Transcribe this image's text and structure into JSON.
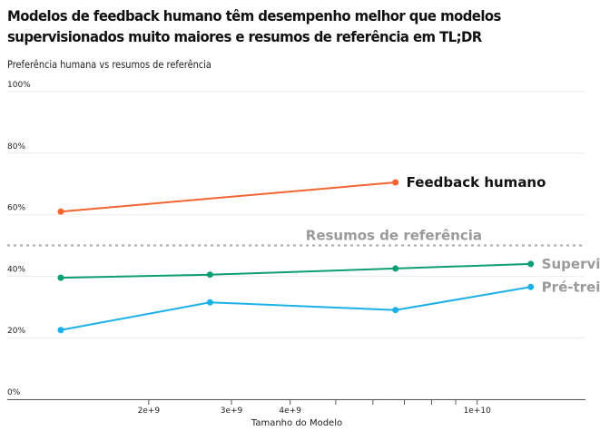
{
  "title": "Modelos de feedback humano têm desempenho melhor que modelos supervisionados muito maiores e resumos de referência em TL;DR",
  "subtitle": "Preferência humana vs resumos de referência",
  "chart_data": {
    "type": "line",
    "xlabel": "Tamanho do Modelo",
    "x_scale": "log",
    "x_ticks": [
      {
        "value": 2000000000,
        "label": "2e+9"
      },
      {
        "value": 3000000000,
        "label": "3e+9"
      },
      {
        "value": 4000000000,
        "label": "4e+9"
      },
      {
        "value": 5000000000,
        "label": ""
      },
      {
        "value": 6000000000,
        "label": ""
      },
      {
        "value": 7000000000,
        "label": ""
      },
      {
        "value": 8000000000,
        "label": ""
      },
      {
        "value": 9000000000,
        "label": ""
      },
      {
        "value": 10000000000,
        "label": "1e+10"
      }
    ],
    "xlim": [
      1000000000,
      17000000000
    ],
    "ylim": [
      0,
      1
    ],
    "y_ticks": [
      {
        "value": 0,
        "label": "0%"
      },
      {
        "value": 0.2,
        "label": "20%"
      },
      {
        "value": 0.4,
        "label": "40%"
      },
      {
        "value": 0.6,
        "label": "60%"
      },
      {
        "value": 0.8,
        "label": "80%"
      },
      {
        "value": 1.0,
        "label": "100%"
      }
    ],
    "grid": true,
    "series": [
      {
        "name": "Feedback humano",
        "color": "#f26430",
        "x": [
          1300000000,
          6700000000
        ],
        "y": [
          0.61,
          0.705
        ]
      },
      {
        "name": "Supervisado",
        "color": "#0e9e74",
        "x": [
          1300000000,
          2700000000,
          6700000000,
          13000000000
        ],
        "y": [
          0.395,
          0.405,
          0.425,
          0.44
        ]
      },
      {
        "name": "Pré-treinado",
        "color": "#1cb0e8",
        "x": [
          1300000000,
          2700000000,
          6700000000,
          13000000000
        ],
        "y": [
          0.225,
          0.315,
          0.29,
          0.365
        ]
      }
    ],
    "reference": {
      "name": "Resumos de referência",
      "y": 0.5,
      "color": "#aaaaaa"
    }
  }
}
